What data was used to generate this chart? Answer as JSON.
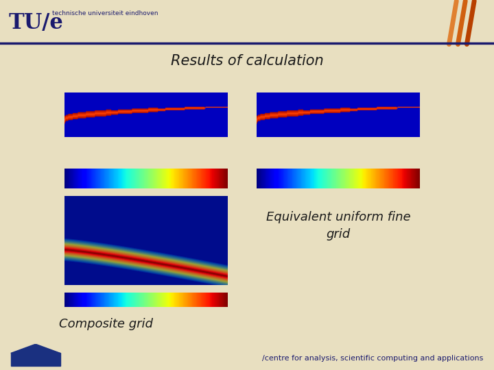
{
  "title": "Results of calculation",
  "label_equiv": "Equivalent uniform fine\ngrid",
  "label_comp": "Composite grid",
  "header_bg": "#ffffff",
  "header_line_color": "#1a1a6e",
  "tu_text": "TU/e",
  "sub_text": "technische universiteit eindhoven",
  "body_bg": "#e8dfc0",
  "top_strip_bg": "#cce8f0",
  "footer_text": "/centre for analysis, scientific computing and applications",
  "title_color": "#1a1a1a",
  "title_fontsize": 15,
  "label_fontsize": 13,
  "footer_fontsize": 8,
  "stripe_colors": [
    "#b84000",
    "#d06010",
    "#e08030"
  ],
  "navy": "#1a1a6e",
  "casa_blue": "#1a3080"
}
